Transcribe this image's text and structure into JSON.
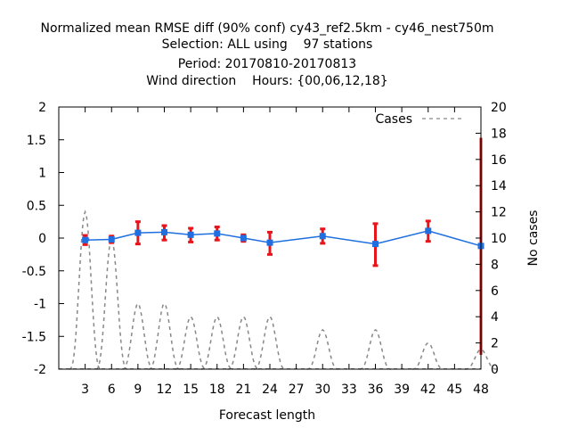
{
  "chart_data": {
    "type": "line",
    "title_lines": [
      "Normalized mean RMSE diff (90% conf) cy43_ref2.5km - cy46_nest750m",
      "Selection: ALL using    97 stations",
      "Period: 20170810-20170813",
      "Wind direction    Hours: {00,06,12,18}"
    ],
    "xlabel": "Forecast length",
    "ylabel_right": "No cases",
    "x_ticks": [
      3,
      6,
      9,
      12,
      15,
      18,
      21,
      24,
      27,
      30,
      33,
      36,
      39,
      42,
      45,
      48
    ],
    "xlim": [
      0,
      48
    ],
    "ylim": [
      -2,
      2
    ],
    "y_ticks": [
      -2,
      -1.5,
      -1,
      -0.5,
      0,
      0.5,
      1,
      1.5,
      2
    ],
    "y_tick_labels": [
      "-2",
      "-1.5",
      "-1",
      "-0.5",
      "0",
      "0.5",
      "1",
      "1.5",
      "2"
    ],
    "y2lim": [
      0,
      20
    ],
    "y2_ticks": [
      0,
      2,
      4,
      6,
      8,
      10,
      12,
      14,
      16,
      18,
      20
    ],
    "series": [
      {
        "x": [
          3,
          6,
          9,
          12,
          15,
          18,
          21,
          24,
          30,
          36,
          42,
          48
        ],
        "values": [
          -0.03,
          -0.02,
          0.08,
          0.09,
          0.05,
          0.07,
          0.0,
          -0.07,
          0.03,
          -0.09,
          0.11,
          -0.12
        ],
        "err_low": [
          -0.1,
          -0.07,
          -0.09,
          -0.03,
          -0.06,
          -0.03,
          -0.05,
          -0.25,
          -0.08,
          -0.42,
          -0.05,
          -1.78
        ],
        "err_high": [
          0.04,
          0.03,
          0.25,
          0.19,
          0.15,
          0.17,
          0.05,
          0.09,
          0.14,
          0.22,
          0.26,
          1.53
        ],
        "color": "#1f6fe0",
        "errorbar_color": "#e8141c",
        "last_errorbar_color": "#c41616"
      }
    ],
    "cases": {
      "name": "Cases",
      "color": "#888888",
      "x": [
        3,
        6,
        9,
        12,
        15,
        18,
        21,
        24,
        30,
        36,
        42,
        48
      ],
      "values": [
        12,
        10,
        5,
        5,
        4,
        4,
        4,
        4,
        3,
        3,
        2,
        1.5
      ]
    },
    "legend_position": "top-right",
    "grid": false
  }
}
